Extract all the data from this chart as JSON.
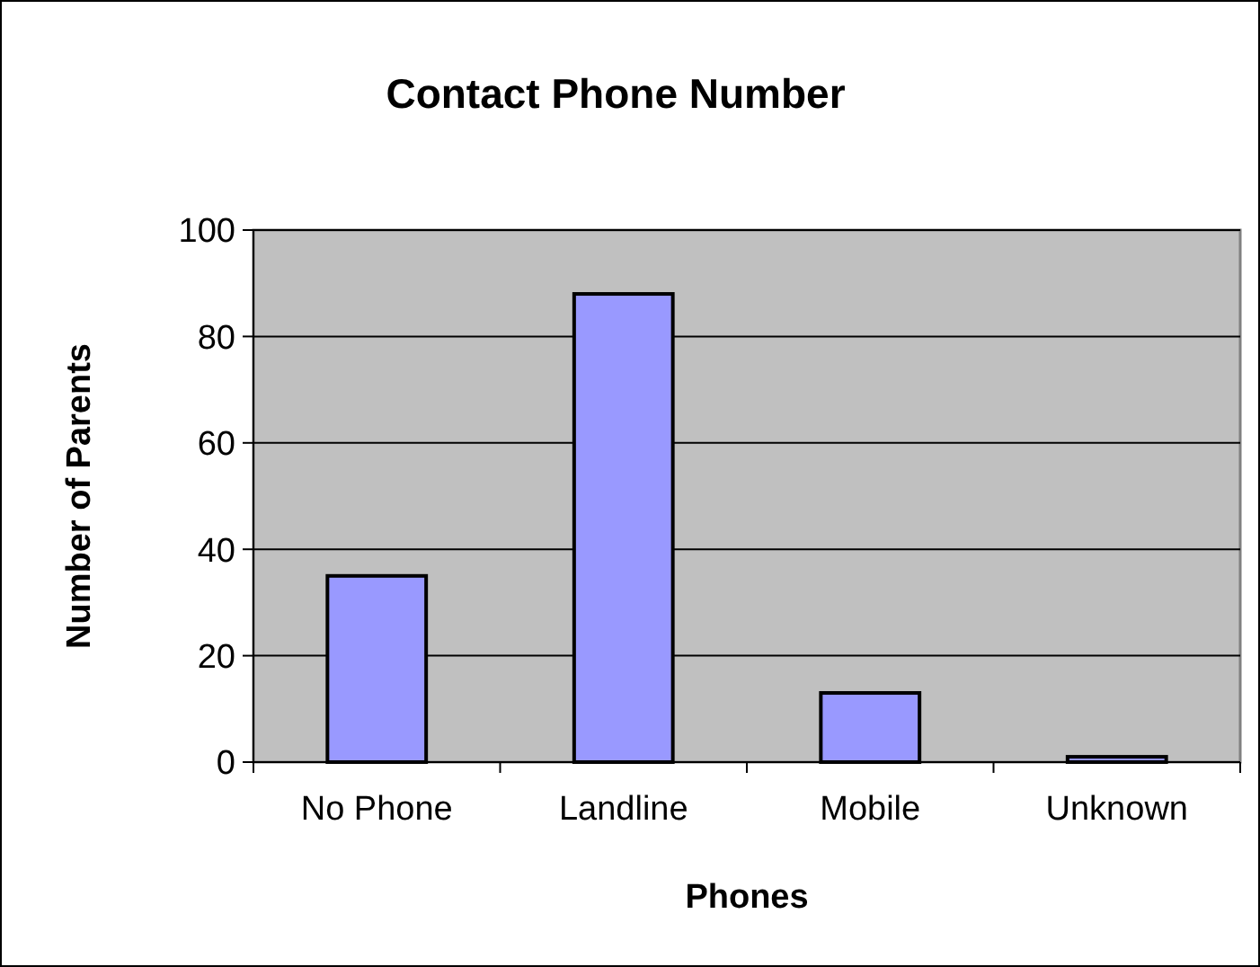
{
  "chart_data": {
    "type": "bar",
    "title": "Contact Phone Number",
    "xlabel": "Phones",
    "ylabel": "Number of Parents",
    "categories": [
      "No Phone",
      "Landline",
      "Mobile",
      "Unknown"
    ],
    "values": [
      35,
      88,
      13,
      1
    ],
    "color": "#9999ff",
    "ylim": [
      0,
      100
    ],
    "yticks": [
      0,
      20,
      40,
      60,
      80,
      100
    ],
    "grid": "y"
  }
}
